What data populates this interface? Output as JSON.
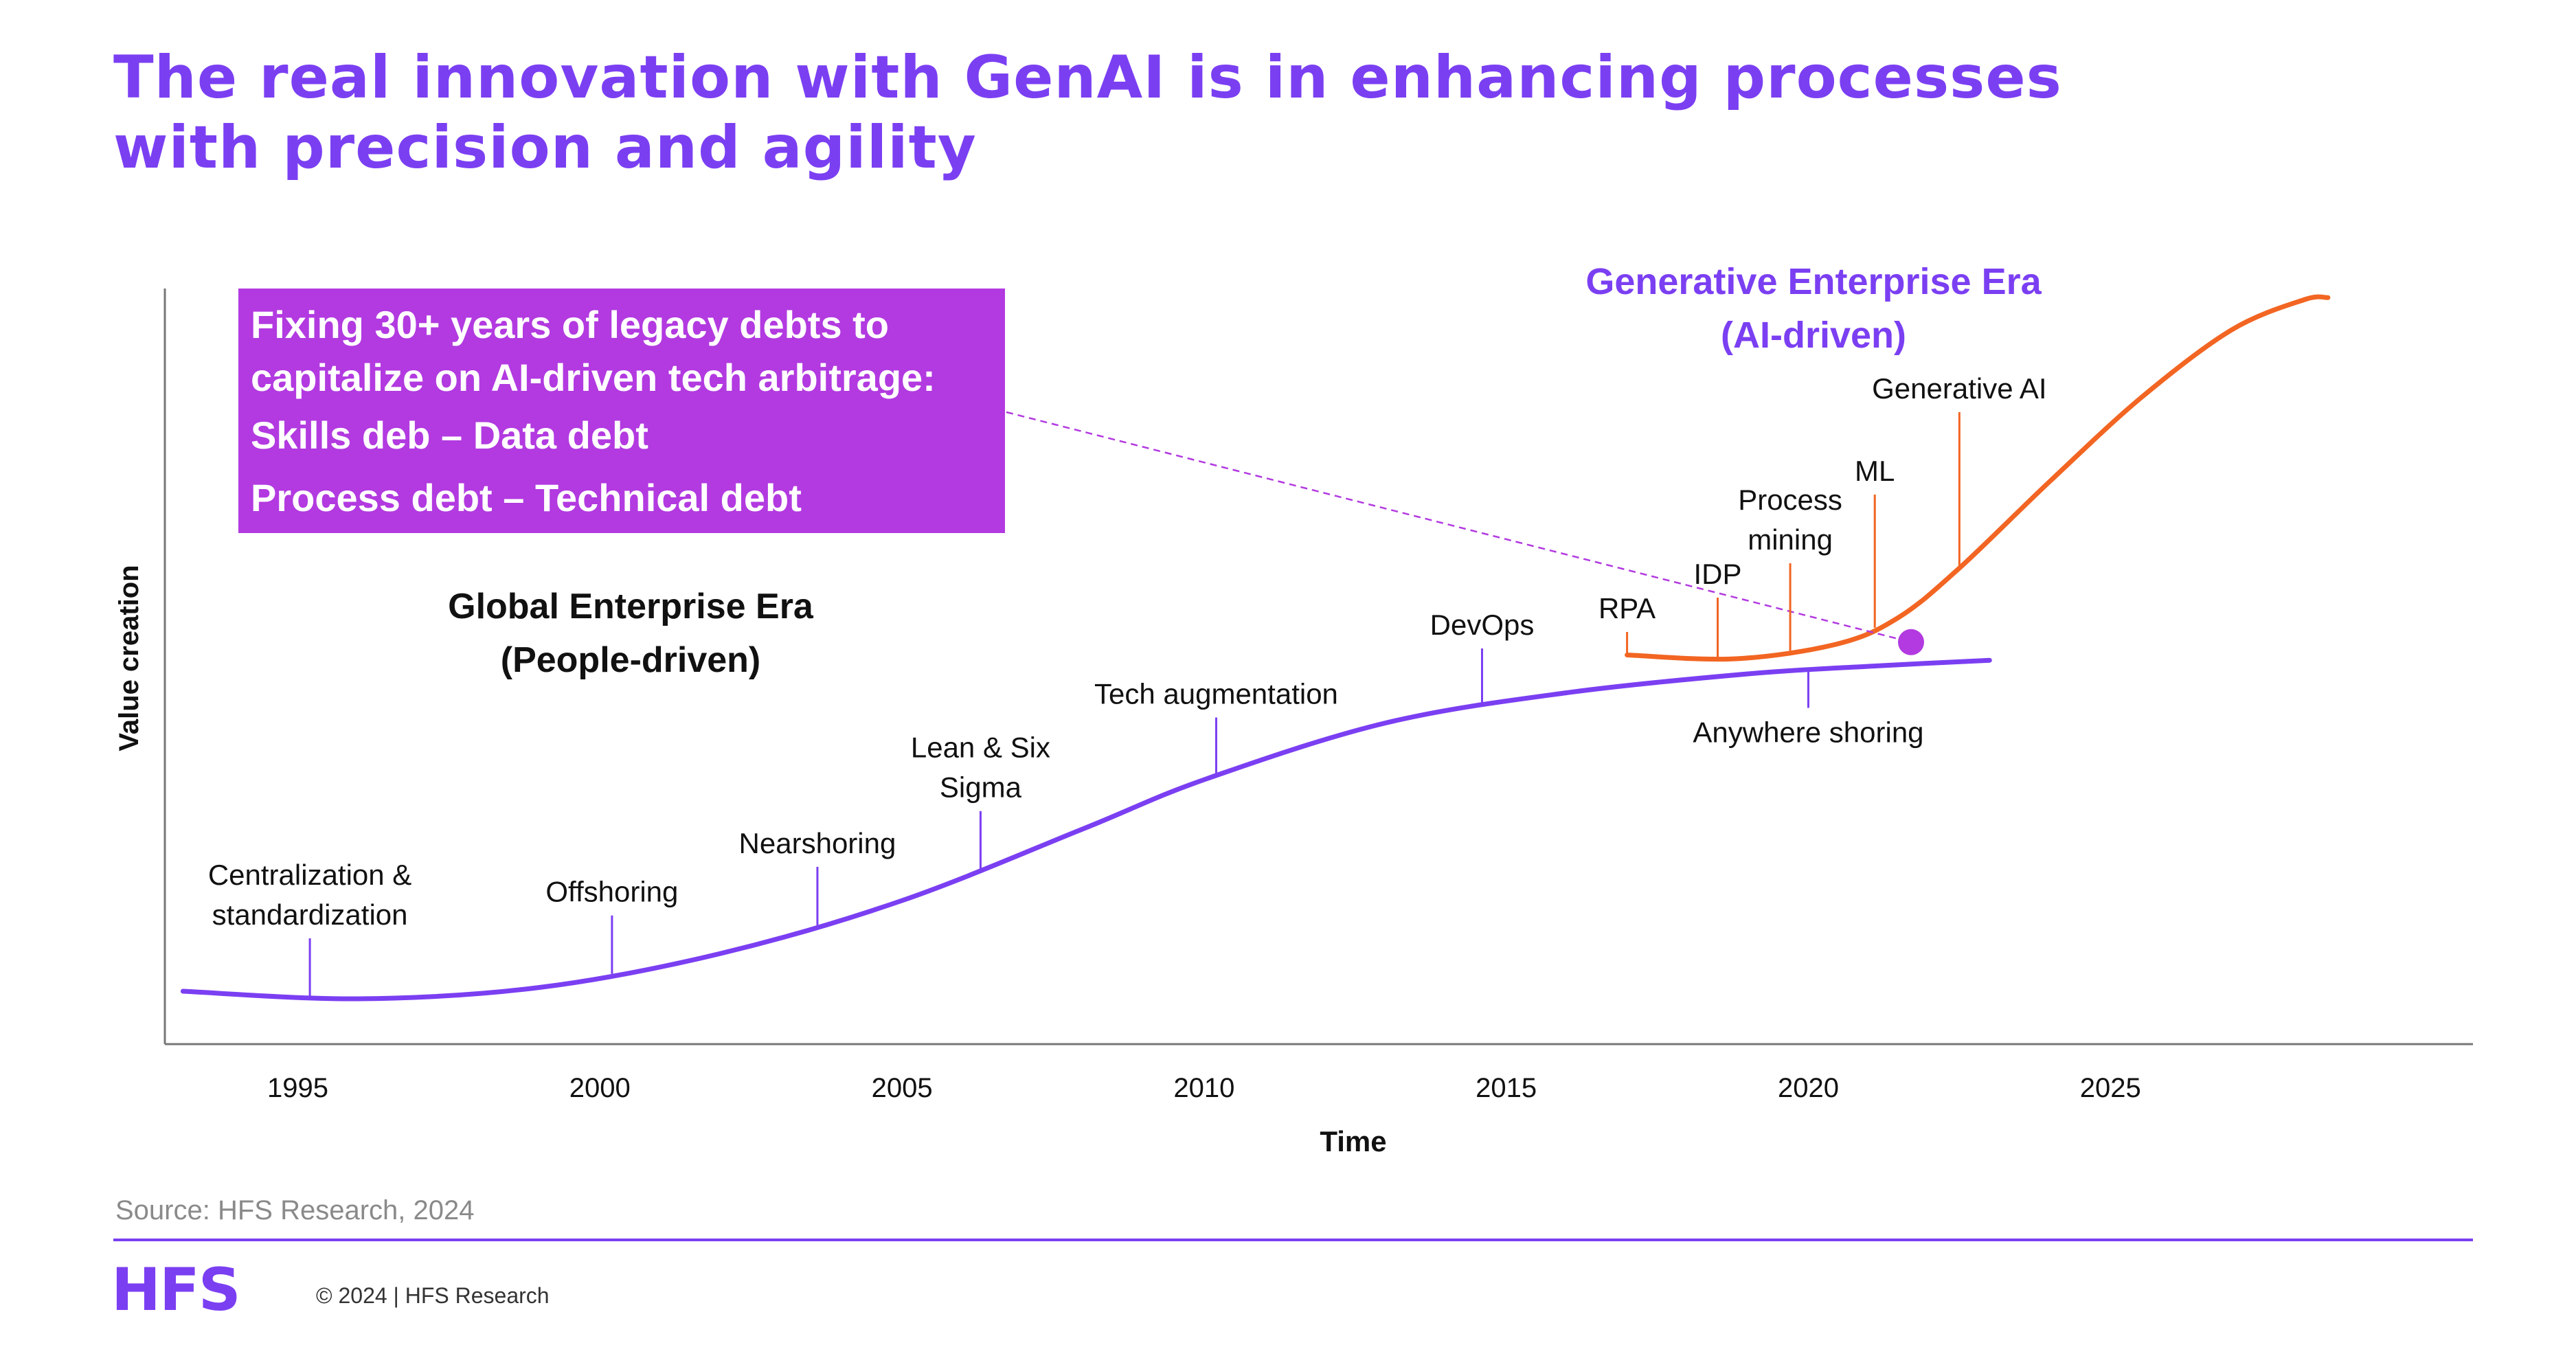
{
  "title": {
    "line1": "The real innovation with GenAI is in enhancing processes",
    "line2": "with precision and agility"
  },
  "callout": {
    "line1": "Fixing 30+ years of legacy debts to",
    "line2": "capitalize on AI-driven tech arbitrage:",
    "line3": "Skills deb – Data debt",
    "line4": "Process debt – Technical debt",
    "color": "#b23ae0"
  },
  "colors": {
    "purple": "#7b3ff2",
    "orange": "#f26522",
    "magenta": "#b23ae0",
    "axis": "#777777"
  },
  "chart_data": {
    "type": "line",
    "xlabel": "Time",
    "ylabel": "Value creation",
    "xlim": [
      1992.8,
      2031
    ],
    "ylim": [
      0,
      100
    ],
    "x_ticks": [
      1995,
      2000,
      2005,
      2010,
      2015,
      2020,
      2025
    ],
    "eras": {
      "global": {
        "line1": "Global Enterprise Era",
        "line2": "(People-driven)"
      },
      "generative": {
        "line1": "Generative Enterprise Era",
        "line2": "(AI-driven)"
      }
    },
    "series": [
      {
        "key": "global",
        "color": "#7b3ff2",
        "points": [
          [
            1993.1,
            7.0
          ],
          [
            1996.0,
            6.0
          ],
          [
            1999.0,
            7.5
          ],
          [
            2002.0,
            12.0
          ],
          [
            2005.0,
            19.0
          ],
          [
            2008.0,
            28.5
          ],
          [
            2010.0,
            35.0
          ],
          [
            2013.0,
            42.5
          ],
          [
            2016.0,
            46.5
          ],
          [
            2019.0,
            49.0
          ],
          [
            2021.0,
            50.0
          ],
          [
            2023.0,
            50.8
          ]
        ]
      },
      {
        "key": "generative",
        "color": "#f26522",
        "points": [
          [
            2017.0,
            51.5
          ],
          [
            2018.8,
            51.0
          ],
          [
            2020.5,
            53.0
          ],
          [
            2021.5,
            56.5
          ],
          [
            2022.5,
            63.0
          ],
          [
            2024.0,
            74.5
          ],
          [
            2025.5,
            85.5
          ],
          [
            2027.0,
            94.5
          ],
          [
            2028.2,
            98.5
          ],
          [
            2028.6,
            98.8
          ]
        ]
      }
    ],
    "milestones": [
      {
        "series": "global",
        "lines": [
          "Centralization &",
          "standardization"
        ],
        "x": 1995.2
      },
      {
        "series": "global",
        "lines": [
          "Offshoring"
        ],
        "x": 2000.2
      },
      {
        "series": "global",
        "lines": [
          "Nearshoring"
        ],
        "x": 2003.6
      },
      {
        "series": "global",
        "lines": [
          "Lean & Six",
          "Sigma"
        ],
        "x": 2006.3
      },
      {
        "series": "global",
        "lines": [
          "Tech augmentation"
        ],
        "x": 2010.2
      },
      {
        "series": "global",
        "lines": [
          "DevOps"
        ],
        "x": 2014.6
      },
      {
        "series": "global",
        "lines": [
          "Anywhere shoring"
        ],
        "x": 2020.0,
        "below": true
      },
      {
        "series": "generative",
        "lines": [
          "RPA"
        ],
        "x": 2017.0
      },
      {
        "series": "generative",
        "lines": [
          "IDP"
        ],
        "x": 2018.5
      },
      {
        "series": "generative",
        "lines": [
          "Process",
          "mining"
        ],
        "x": 2019.7
      },
      {
        "series": "generative",
        "lines": [
          "ML"
        ],
        "x": 2021.1
      },
      {
        "series": "generative",
        "lines": [
          "Generative AI"
        ],
        "x": 2022.5
      }
    ],
    "highlight_point": {
      "x": 2021.7,
      "y": 53.2
    }
  },
  "source": "Source: HFS Research, 2024",
  "footer": {
    "logo": "HFS",
    "copyright": "© 2024 | HFS Research"
  }
}
